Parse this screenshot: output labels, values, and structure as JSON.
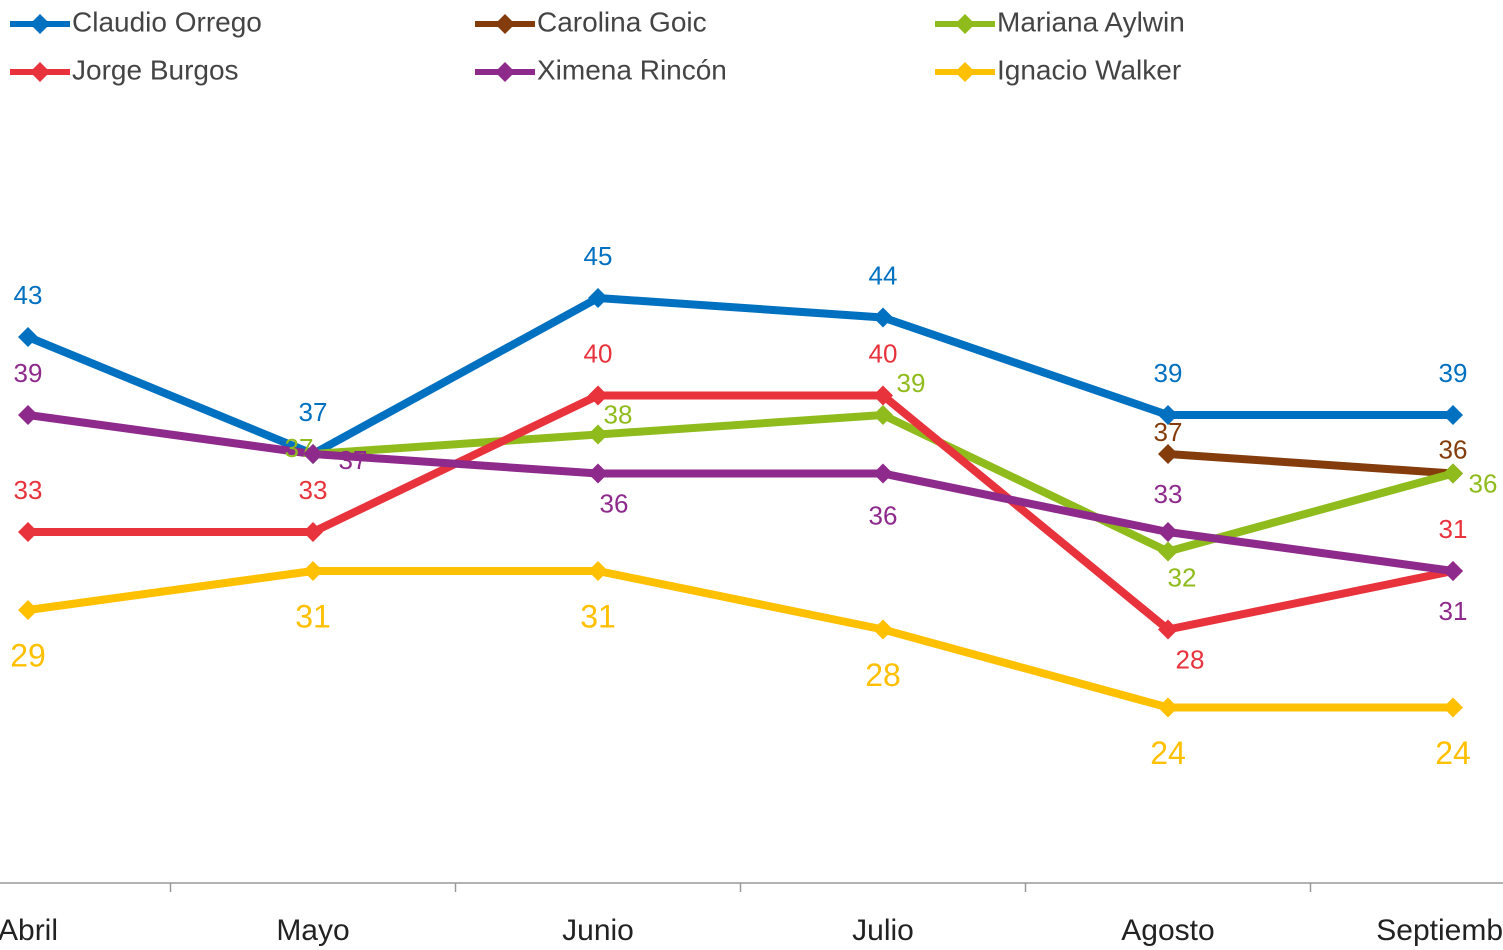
{
  "chart_data": {
    "type": "line",
    "categories": [
      "Abril",
      "Mayo",
      "Junio",
      "Julio",
      "Agosto",
      "Septiembre"
    ],
    "series": [
      {
        "name": "Claudio Orrego",
        "color": "#0070c0",
        "values": [
          43,
          37,
          45,
          44,
          39,
          39
        ]
      },
      {
        "name": "Carolina Goic",
        "color": "#843c0c",
        "values": [
          null,
          null,
          null,
          null,
          37,
          36
        ]
      },
      {
        "name": "Mariana Aylwin",
        "color": "#8fbc1c",
        "values": [
          null,
          37,
          38,
          39,
          32,
          36
        ]
      },
      {
        "name": "Jorge Burgos",
        "color": "#e8323c",
        "values": [
          33,
          33,
          40,
          40,
          28,
          31
        ]
      },
      {
        "name": "Ximena Rincón",
        "color": "#8e2a8c",
        "values": [
          39,
          37,
          36,
          36,
          33,
          31
        ]
      },
      {
        "name": "Ignacio Walker",
        "color": "#ffc000",
        "values": [
          29,
          31,
          31,
          28,
          24,
          24
        ]
      }
    ],
    "ylim": [
      15,
      50
    ]
  }
}
